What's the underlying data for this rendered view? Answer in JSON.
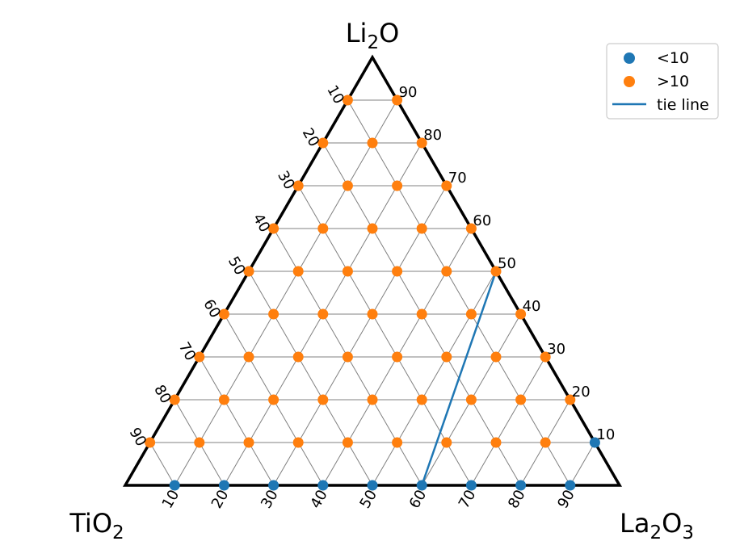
{
  "chart_data": {
    "type": "scatter",
    "subtype": "ternary",
    "corners": {
      "top": {
        "base": "Li",
        "sub": "2",
        "tail": "O"
      },
      "left": {
        "base": "TiO",
        "sub": "2",
        "tail": ""
      },
      "right": {
        "base": "La",
        "sub": "2",
        "tail": "O",
        "sub2": "3"
      }
    },
    "ticks": [
      10,
      20,
      30,
      40,
      50,
      60,
      70,
      80,
      90
    ],
    "grid": true,
    "legend_placement": "top-right",
    "series": [
      {
        "name": "<10",
        "color": "#1f77b4",
        "points": [
          [
            0.1,
            0.0
          ],
          [
            0.2,
            0.0
          ],
          [
            0.3,
            0.0
          ],
          [
            0.4,
            0.0
          ],
          [
            0.5,
            0.0
          ],
          [
            0.6,
            0.0
          ],
          [
            0.7,
            0.0
          ],
          [
            0.8,
            0.0
          ],
          [
            0.9,
            0.0
          ],
          [
            0.9,
            0.1
          ]
        ]
      },
      {
        "name": ">10",
        "color": "#ff7f0e",
        "points": [
          [
            0.0,
            0.1
          ],
          [
            0.1,
            0.1
          ],
          [
            0.2,
            0.1
          ],
          [
            0.3,
            0.1
          ],
          [
            0.4,
            0.1
          ],
          [
            0.5,
            0.1
          ],
          [
            0.6,
            0.1
          ],
          [
            0.7,
            0.1
          ],
          [
            0.8,
            0.1
          ],
          [
            0.0,
            0.2
          ],
          [
            0.1,
            0.2
          ],
          [
            0.2,
            0.2
          ],
          [
            0.3,
            0.2
          ],
          [
            0.4,
            0.2
          ],
          [
            0.5,
            0.2
          ],
          [
            0.6,
            0.2
          ],
          [
            0.7,
            0.2
          ],
          [
            0.8,
            0.2
          ],
          [
            0.0,
            0.3
          ],
          [
            0.1,
            0.3
          ],
          [
            0.2,
            0.3
          ],
          [
            0.3,
            0.3
          ],
          [
            0.4,
            0.3
          ],
          [
            0.5,
            0.3
          ],
          [
            0.6,
            0.3
          ],
          [
            0.7,
            0.3
          ],
          [
            0.0,
            0.4
          ],
          [
            0.1,
            0.4
          ],
          [
            0.2,
            0.4
          ],
          [
            0.3,
            0.4
          ],
          [
            0.4,
            0.4
          ],
          [
            0.5,
            0.4
          ],
          [
            0.6,
            0.4
          ],
          [
            0.0,
            0.5
          ],
          [
            0.1,
            0.5
          ],
          [
            0.2,
            0.5
          ],
          [
            0.3,
            0.5
          ],
          [
            0.4,
            0.5
          ],
          [
            0.5,
            0.5
          ],
          [
            0.0,
            0.6
          ],
          [
            0.1,
            0.6
          ],
          [
            0.2,
            0.6
          ],
          [
            0.3,
            0.6
          ],
          [
            0.4,
            0.6
          ],
          [
            0.0,
            0.7
          ],
          [
            0.1,
            0.7
          ],
          [
            0.2,
            0.7
          ],
          [
            0.3,
            0.7
          ],
          [
            0.0,
            0.8
          ],
          [
            0.1,
            0.8
          ],
          [
            0.2,
            0.8
          ],
          [
            0.0,
            0.9
          ],
          [
            0.1,
            0.9
          ]
        ]
      }
    ],
    "tie_line": {
      "name": "tie line",
      "color": "#1f77b4",
      "from": [
        0.6,
        0.0
      ],
      "to": [
        0.5,
        0.5
      ]
    }
  }
}
